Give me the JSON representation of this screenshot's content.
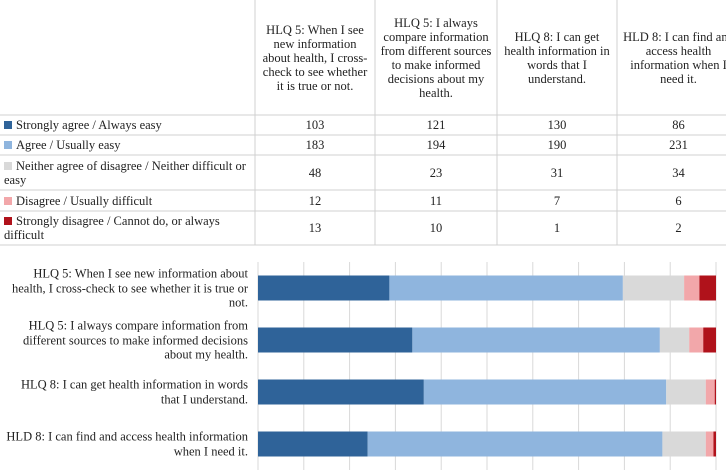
{
  "chart_data": {
    "type": "stacked-barh",
    "categories": [
      "HLQ 5:  When I see new information about health, I cross-check to see whether it is true or not.",
      "HLQ 5:  I always compare information from different sources to make informed decisions about my health.",
      "HLQ 8:  I can get health information in words that I understand.",
      "HLD 8:  I can find and access health information when I need it."
    ],
    "series": [
      {
        "name": "Strongly agree / Always easy",
        "color": "#2f6399",
        "values": [
          103,
          121,
          130,
          86
        ]
      },
      {
        "name": "Agree / Usually easy",
        "color": "#8fb5de",
        "values": [
          183,
          194,
          190,
          231
        ]
      },
      {
        "name": "Neither agree of disagree / Neither difficult or easy",
        "color": "#d9d9d9",
        "values": [
          48,
          23,
          31,
          34
        ]
      },
      {
        "name": "Disagree / Usually difficult",
        "color": "#f2a7aa",
        "values": [
          12,
          11,
          7,
          6
        ]
      },
      {
        "name": "Strongly disagree / Cannot do, or always difficult",
        "color": "#b0121b",
        "values": [
          13,
          10,
          1,
          2
        ]
      }
    ],
    "xlim": [
      0,
      359
    ],
    "xticks": [
      0,
      35.9,
      71.8,
      107.7,
      143.6,
      179.5,
      215.4,
      251.3,
      287.2,
      323.1,
      359
    ],
    "grid": true
  }
}
